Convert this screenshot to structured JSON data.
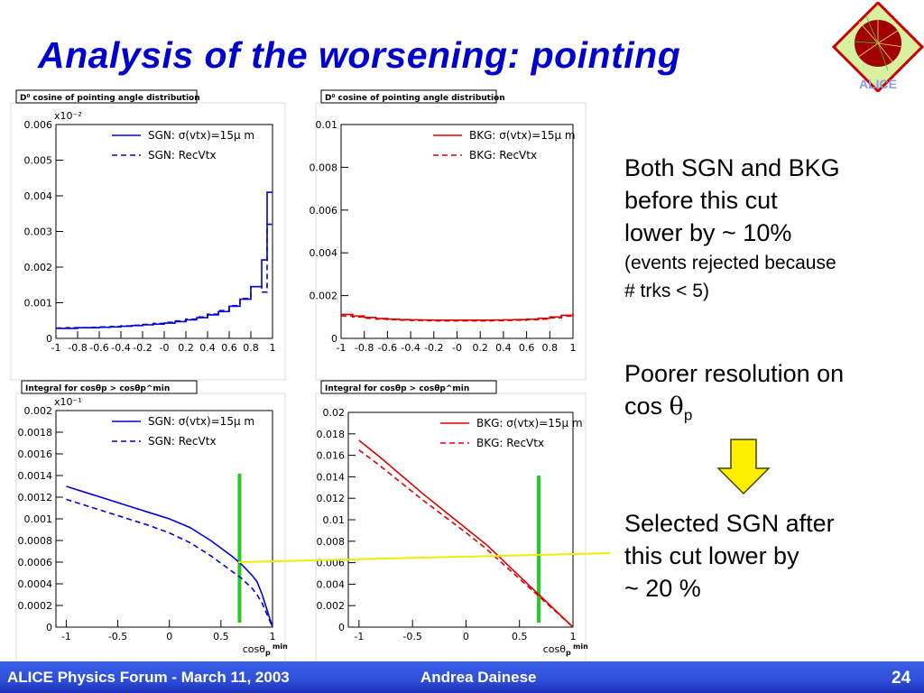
{
  "slide": {
    "title": "Analysis of the worsening: pointing",
    "logo_text": "ALICE",
    "colors": {
      "title": "#0000cc",
      "sgn": "#0000dd",
      "bkg": "#dd0000",
      "cut": "#22cc22",
      "guide": "#eeee00",
      "arrow": "#ffee00",
      "footer": "#3050e0"
    }
  },
  "text": {
    "p1_line1": "Both SGN and BKG",
    "p1_line2": "before this cut",
    "p1_line3": "lower by ~ 10%",
    "p1_line4": "(events rejected because",
    "p1_line5": "# trks < 5)",
    "p2_line1": "Poorer resolution on",
    "p2_cos": "cos",
    "p2_theta": "θ",
    "p2_sub": "p",
    "p3_line1": "Selected SGN after",
    "p3_line2": "this cut lower by",
    "p3_line3": "~ 20 %"
  },
  "footer": {
    "left": "ALICE Physics Forum - March 11, 2003",
    "center": "Andrea Dainese",
    "page": "24"
  },
  "chart_data": [
    {
      "type": "line",
      "id": "sgn_hist",
      "title": "D⁰ cosine of pointing angle distribution",
      "xlabel": "",
      "xlim": [
        -1,
        1
      ],
      "ylim": [
        0,
        0.006
      ],
      "exponent_label": "x10⁻²",
      "xticks": [
        "-1",
        "-0.8",
        "-0.6",
        "-0.4",
        "-0.2",
        "-0",
        "0.2",
        "0.4",
        "0.6",
        "0.8",
        "1"
      ],
      "yticks": [
        "0",
        "0.001",
        "0.002",
        "0.003",
        "0.004",
        "0.005",
        "0.006"
      ],
      "legend": "top-right",
      "series": [
        {
          "name": "SGN: σ(vtx)=15μ m",
          "style": "solid",
          "x": [
            -1,
            -0.9,
            -0.8,
            -0.7,
            -0.6,
            -0.5,
            -0.4,
            -0.3,
            -0.2,
            -0.1,
            0,
            0.1,
            0.2,
            0.3,
            0.4,
            0.5,
            0.6,
            0.7,
            0.8,
            0.9,
            0.95,
            1
          ],
          "values": [
            0.00028,
            0.00028,
            0.0003,
            0.0003,
            0.00031,
            0.00032,
            0.00034,
            0.00036,
            0.00038,
            0.0004,
            0.00043,
            0.00047,
            0.00052,
            0.00058,
            0.00066,
            0.00075,
            0.0009,
            0.0011,
            0.00145,
            0.0022,
            0.0041,
            0.0041
          ]
        },
        {
          "name": "SGN: RecVtx",
          "style": "dashed",
          "x": [
            -1,
            -0.9,
            -0.8,
            -0.7,
            -0.6,
            -0.5,
            -0.4,
            -0.3,
            -0.2,
            -0.1,
            0,
            0.1,
            0.2,
            0.3,
            0.4,
            0.5,
            0.6,
            0.7,
            0.8,
            0.9,
            0.95,
            1
          ],
          "values": [
            0.00029,
            0.0003,
            0.0003,
            0.00031,
            0.00032,
            0.00033,
            0.00035,
            0.00037,
            0.00039,
            0.00042,
            0.00045,
            0.00049,
            0.00054,
            0.0006,
            0.00068,
            0.00078,
            0.00092,
            0.00112,
            0.00145,
            0.0013,
            0.0032,
            0.0032
          ]
        }
      ]
    },
    {
      "type": "line",
      "id": "bkg_hist",
      "title": "D⁰ cosine of pointing angle distribution",
      "xlabel": "",
      "xlim": [
        -1,
        1
      ],
      "ylim": [
        0,
        0.01
      ],
      "xticks": [
        "-1",
        "-0.8",
        "-0.6",
        "-0.4",
        "-0.2",
        "-0",
        "0.2",
        "0.4",
        "0.6",
        "0.8",
        "1"
      ],
      "yticks": [
        "0",
        "0.002",
        "0.004",
        "0.006",
        "0.008",
        "0.01"
      ],
      "legend": "top-right",
      "series": [
        {
          "name": "BKG: σ(vtx)=15μ m",
          "style": "solid",
          "x": [
            -1,
            -0.9,
            -0.8,
            -0.7,
            -0.6,
            -0.5,
            -0.4,
            -0.3,
            -0.2,
            -0.1,
            0,
            0.1,
            0.2,
            0.3,
            0.4,
            0.5,
            0.6,
            0.7,
            0.8,
            0.9,
            1
          ],
          "values": [
            0.00112,
            0.00105,
            0.00098,
            0.00093,
            0.0009,
            0.00088,
            0.00087,
            0.00086,
            0.00085,
            0.00085,
            0.00085,
            0.00085,
            0.00085,
            0.00086,
            0.00087,
            0.00088,
            0.0009,
            0.00094,
            0.001,
            0.00108,
            0.00118
          ]
        },
        {
          "name": "BKG: RecVtx",
          "style": "dashed",
          "x": [
            -1,
            -0.9,
            -0.8,
            -0.7,
            -0.6,
            -0.5,
            -0.4,
            -0.3,
            -0.2,
            -0.1,
            0,
            0.1,
            0.2,
            0.3,
            0.4,
            0.5,
            0.6,
            0.7,
            0.8,
            0.9,
            1
          ],
          "values": [
            0.00105,
            0.001,
            0.00094,
            0.0009,
            0.00087,
            0.00085,
            0.00084,
            0.00083,
            0.00082,
            0.00082,
            0.00082,
            0.00082,
            0.00082,
            0.00083,
            0.00084,
            0.00085,
            0.00087,
            0.0009,
            0.00096,
            0.00104,
            0.00112
          ]
        }
      ]
    },
    {
      "type": "line",
      "id": "sgn_integral",
      "title": "Integral for cosθp > cosθp^min",
      "xlabel": "cosθp^min",
      "xlim": [
        -1.1,
        1
      ],
      "ylim": [
        0,
        0.002
      ],
      "exponent_label": "x10⁻¹",
      "xticks": [
        "-1",
        "-0.5",
        "0",
        "0.5",
        "1"
      ],
      "yticks": [
        "0",
        "0.0002",
        "0.0004",
        "0.0006",
        "0.0008",
        "0.001",
        "0.0012",
        "0.0014",
        "0.0016",
        "0.0018",
        "0.002"
      ],
      "legend": "top-right",
      "cut_x": 0.68,
      "series": [
        {
          "name": "SGN: σ(vtx)=15μ m",
          "style": "solid",
          "x": [
            -1,
            -0.8,
            -0.6,
            -0.4,
            -0.2,
            0,
            0.2,
            0.4,
            0.5,
            0.6,
            0.7,
            0.8,
            0.85,
            0.9,
            0.95,
            1
          ],
          "values": [
            0.0013,
            0.00124,
            0.00118,
            0.00112,
            0.00106,
            0.001,
            0.00092,
            0.0008,
            0.00073,
            0.00066,
            0.00058,
            0.00048,
            0.00042,
            0.0003,
            0.00015,
            0
          ]
        },
        {
          "name": "SGN: RecVtx",
          "style": "dashed",
          "x": [
            -1,
            -0.8,
            -0.6,
            -0.4,
            -0.2,
            0,
            0.2,
            0.4,
            0.5,
            0.6,
            0.7,
            0.8,
            0.85,
            0.9,
            0.95,
            1
          ],
          "values": [
            0.00118,
            0.00112,
            0.00106,
            0.001,
            0.00094,
            0.00087,
            0.00078,
            0.00066,
            0.00059,
            0.00052,
            0.00045,
            0.00036,
            0.0003,
            0.00022,
            0.00011,
            0
          ]
        }
      ]
    },
    {
      "type": "line",
      "id": "bkg_integral",
      "title": "Integral for cosθp > cosθp^min",
      "xlabel": "cosθp^min",
      "xlim": [
        -1.1,
        1
      ],
      "ylim": [
        0,
        0.02
      ],
      "xticks": [
        "-1",
        "-0.5",
        "0",
        "0.5",
        "1"
      ],
      "yticks": [
        "0",
        "0.002",
        "0.004",
        "0.006",
        "0.008",
        "0.01",
        "0.012",
        "0.014",
        "0.016",
        "0.018",
        "0.02"
      ],
      "legend": "top-right",
      "cut_x": 0.68,
      "series": [
        {
          "name": "BKG: σ(vtx)=15μ m",
          "style": "solid",
          "x": [
            -1,
            -0.8,
            -0.6,
            -0.4,
            -0.2,
            0,
            0.2,
            0.4,
            0.6,
            0.8,
            1
          ],
          "values": [
            0.0174,
            0.0158,
            0.0141,
            0.0124,
            0.0108,
            0.0092,
            0.0076,
            0.0057,
            0.0038,
            0.0019,
            0
          ]
        },
        {
          "name": "BKG: RecVtx",
          "style": "dashed",
          "x": [
            -1,
            -0.8,
            -0.6,
            -0.4,
            -0.2,
            0,
            0.2,
            0.4,
            0.6,
            0.8,
            1
          ],
          "values": [
            0.0165,
            0.015,
            0.0134,
            0.0118,
            0.0103,
            0.0088,
            0.0072,
            0.0054,
            0.0036,
            0.0018,
            0
          ]
        }
      ]
    }
  ]
}
